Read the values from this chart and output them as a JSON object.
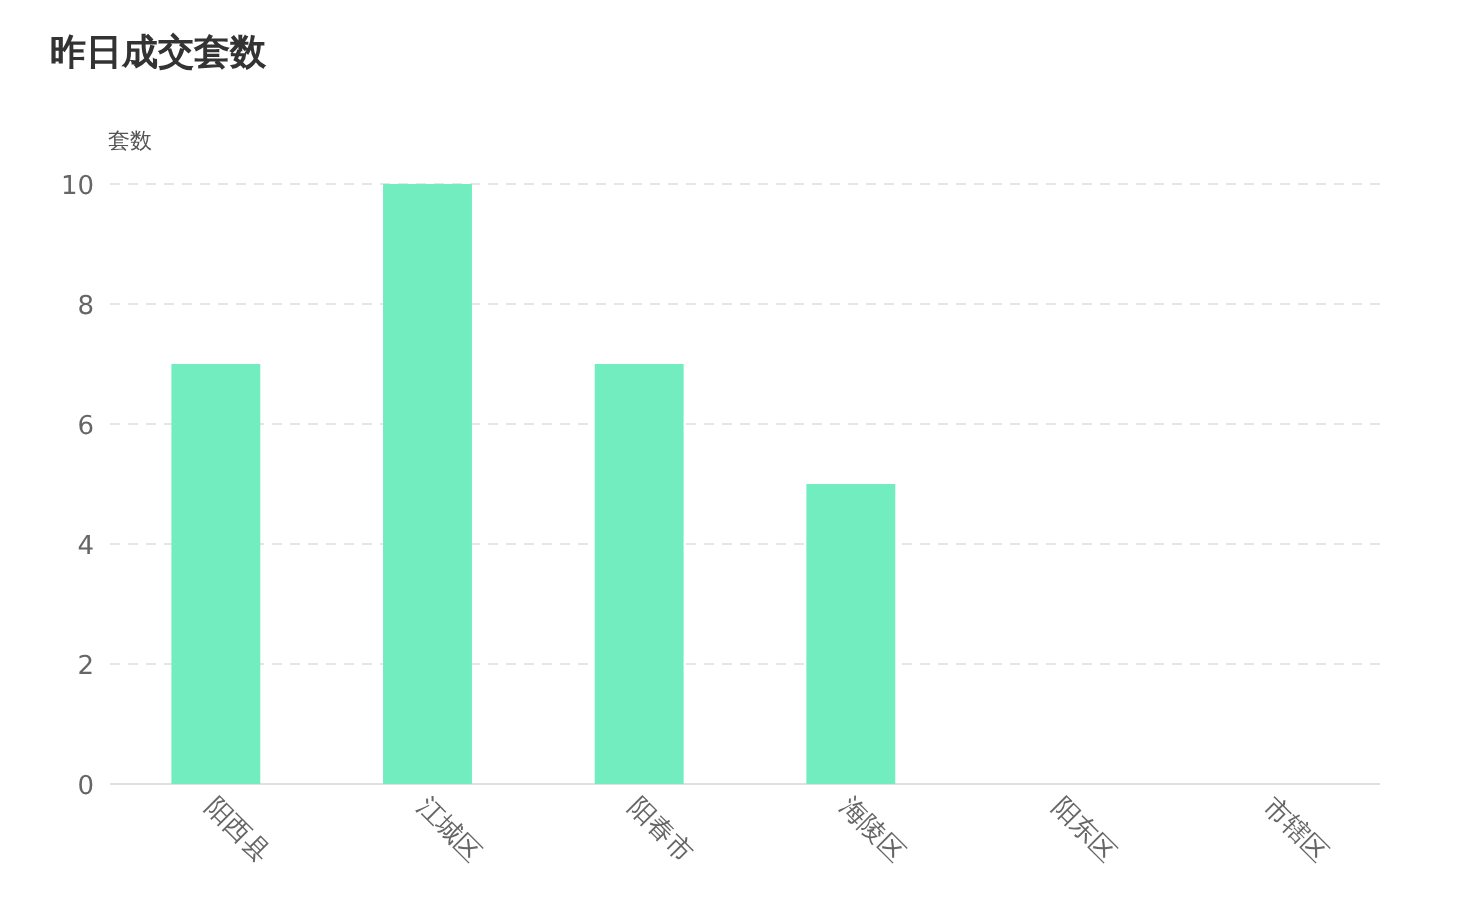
{
  "chart_data": {
    "type": "bar",
    "title": "昨日成交套数",
    "ylabel": "套数",
    "categories": [
      "阳西县",
      "江城区",
      "阳春市",
      "海陵区",
      "阳东区",
      "市辖区"
    ],
    "values": [
      7,
      10,
      7,
      5,
      0,
      0
    ],
    "color": "#72edc0",
    "ylim": [
      0,
      10
    ],
    "yticks": [
      0,
      2,
      4,
      6,
      8,
      10
    ],
    "grid": "y"
  }
}
